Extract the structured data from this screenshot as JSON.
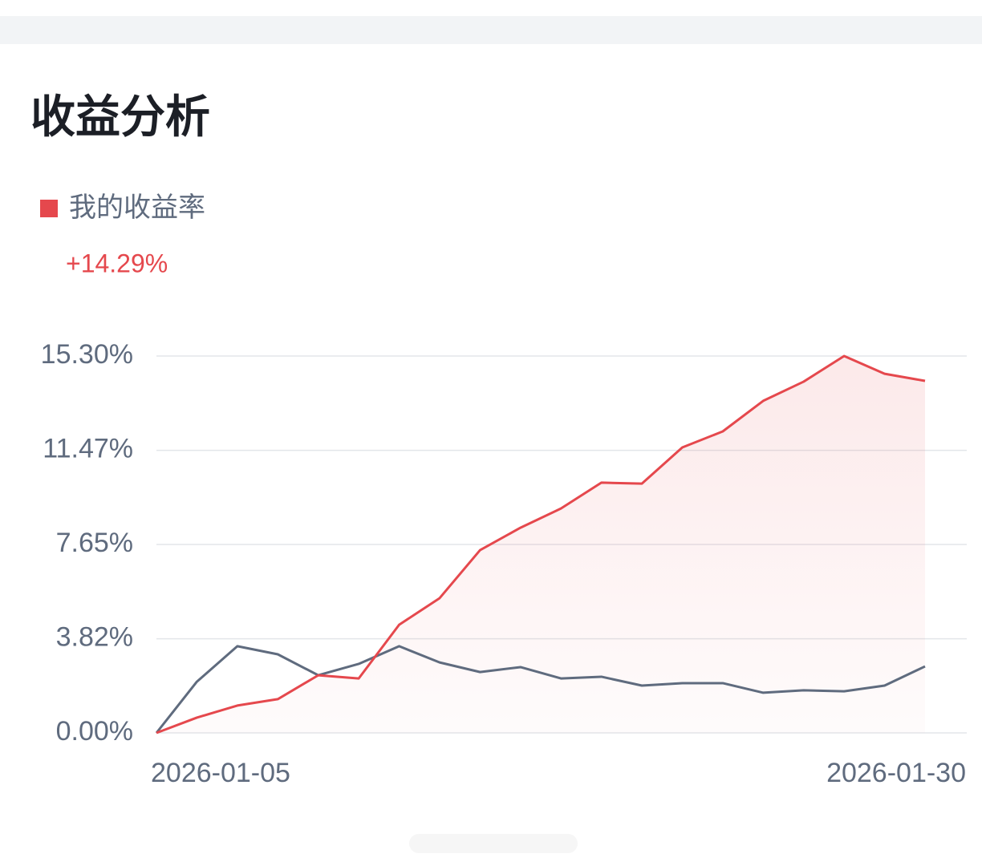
{
  "chart_data": {
    "type": "line",
    "title": "收益分析",
    "annotation": "+14.29%",
    "categories": [
      "2026-01-05",
      null,
      null,
      null,
      null,
      null,
      null,
      null,
      null,
      null,
      null,
      null,
      null,
      null,
      null,
      null,
      null,
      null,
      null,
      "2026-01-30"
    ],
    "series": [
      {
        "name": "我的收益率",
        "color": "#e5484d",
        "area": true,
        "values": [
          0,
          0.62,
          1.11,
          1.37,
          2.34,
          2.21,
          4.39,
          5.47,
          7.42,
          8.33,
          9.11,
          10.16,
          10.12,
          11.59,
          12.24,
          13.48,
          14.26,
          15.3,
          14.58,
          14.29
        ]
      },
      {
        "color": "#5f6b7e",
        "values": [
          0,
          2.08,
          3.52,
          3.19,
          2.34,
          2.8,
          3.52,
          2.86,
          2.47,
          2.67,
          2.21,
          2.28,
          1.92,
          2.02,
          2.02,
          1.63,
          1.73,
          1.69,
          1.92,
          2.7
        ]
      }
    ],
    "ylim": [
      0,
      15.3
    ],
    "yticks": [
      {
        "value": 0,
        "label": "0.00%"
      },
      {
        "value": 3.82,
        "label": "3.82%"
      },
      {
        "value": 7.65,
        "label": "7.65%"
      },
      {
        "value": 11.47,
        "label": "11.47%"
      },
      {
        "value": 15.3,
        "label": "15.30%"
      }
    ],
    "grid": true
  }
}
